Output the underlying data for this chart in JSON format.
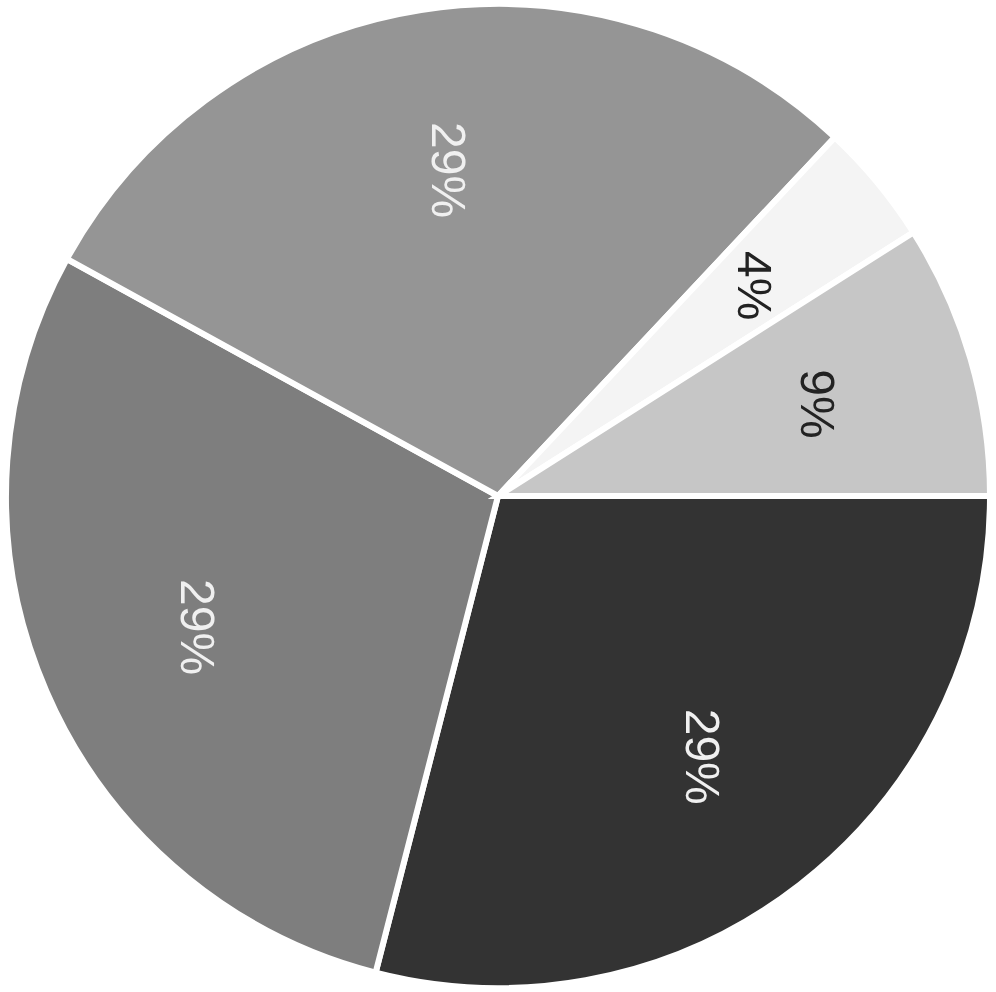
{
  "chart_data": {
    "type": "pie",
    "categories": [
      null,
      null,
      null,
      null,
      null
    ],
    "values": [
      29,
      29,
      29,
      4,
      9
    ],
    "colors": [
      "#333333",
      "#7e7e7e",
      "#959595",
      "#f4f4f4",
      "#c6c6c6"
    ],
    "value_labels": [
      "29%",
      "29%",
      "29%",
      "4%",
      "9%"
    ]
  }
}
